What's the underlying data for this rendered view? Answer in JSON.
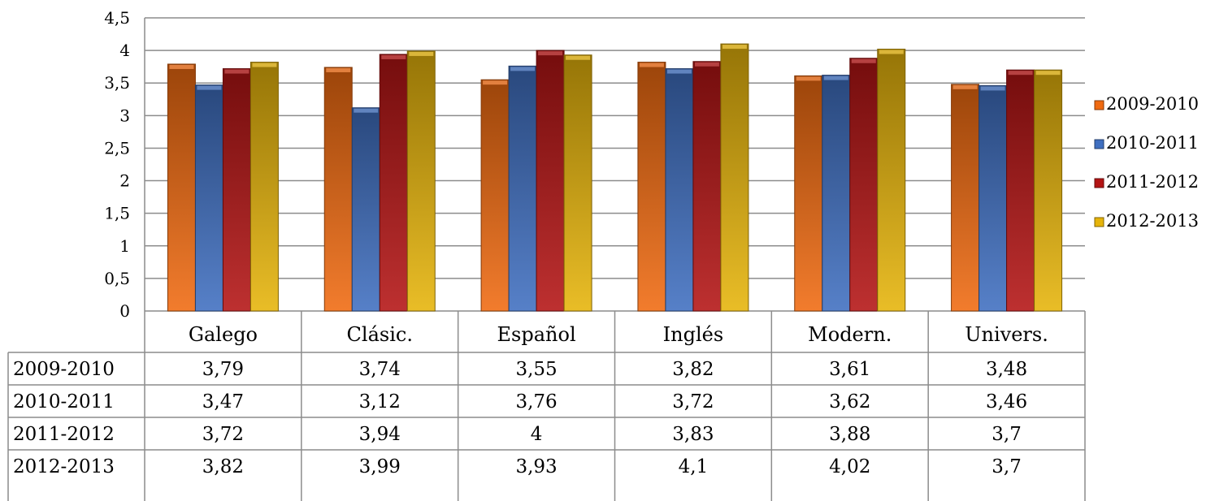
{
  "chart_data": {
    "type": "bar",
    "categories": [
      "Galego",
      "Clásic.",
      "Español",
      "Inglés",
      "Modern.",
      "Univers."
    ],
    "y_ticks": [
      "0",
      "0,5",
      "1",
      "1,5",
      "2",
      "2,5",
      "3",
      "3,5",
      "4",
      "4,5"
    ],
    "ylim": [
      0,
      4.5
    ],
    "grid": true,
    "legend_position": "right",
    "data_table": true,
    "series": [
      {
        "name": "2009-2010",
        "color": "#f06a10",
        "values": [
          3.79,
          3.74,
          3.55,
          3.82,
          3.61,
          3.48
        ],
        "labels": [
          "3,79",
          "3,74",
          "3,55",
          "3,82",
          "3,61",
          "3,48"
        ]
      },
      {
        "name": "2010-2011",
        "color": "#3f6fc0",
        "values": [
          3.47,
          3.12,
          3.76,
          3.72,
          3.62,
          3.46
        ],
        "labels": [
          "3,47",
          "3,12",
          "3,76",
          "3,72",
          "3,62",
          "3,46"
        ]
      },
      {
        "name": "2011-2012",
        "color": "#b41414",
        "values": [
          3.72,
          3.94,
          4,
          3.83,
          3.88,
          3.7
        ],
        "labels": [
          "3,72",
          "3,94",
          "4",
          "3,83",
          "3,88",
          "3,7"
        ]
      },
      {
        "name": "2012-2013",
        "color": "#e6b40a",
        "values": [
          3.82,
          3.99,
          3.93,
          4.1,
          4.02,
          3.7
        ],
        "labels": [
          "3,82",
          "3,99",
          "3,93",
          "4,1",
          "4,02",
          "3,7"
        ]
      }
    ]
  }
}
